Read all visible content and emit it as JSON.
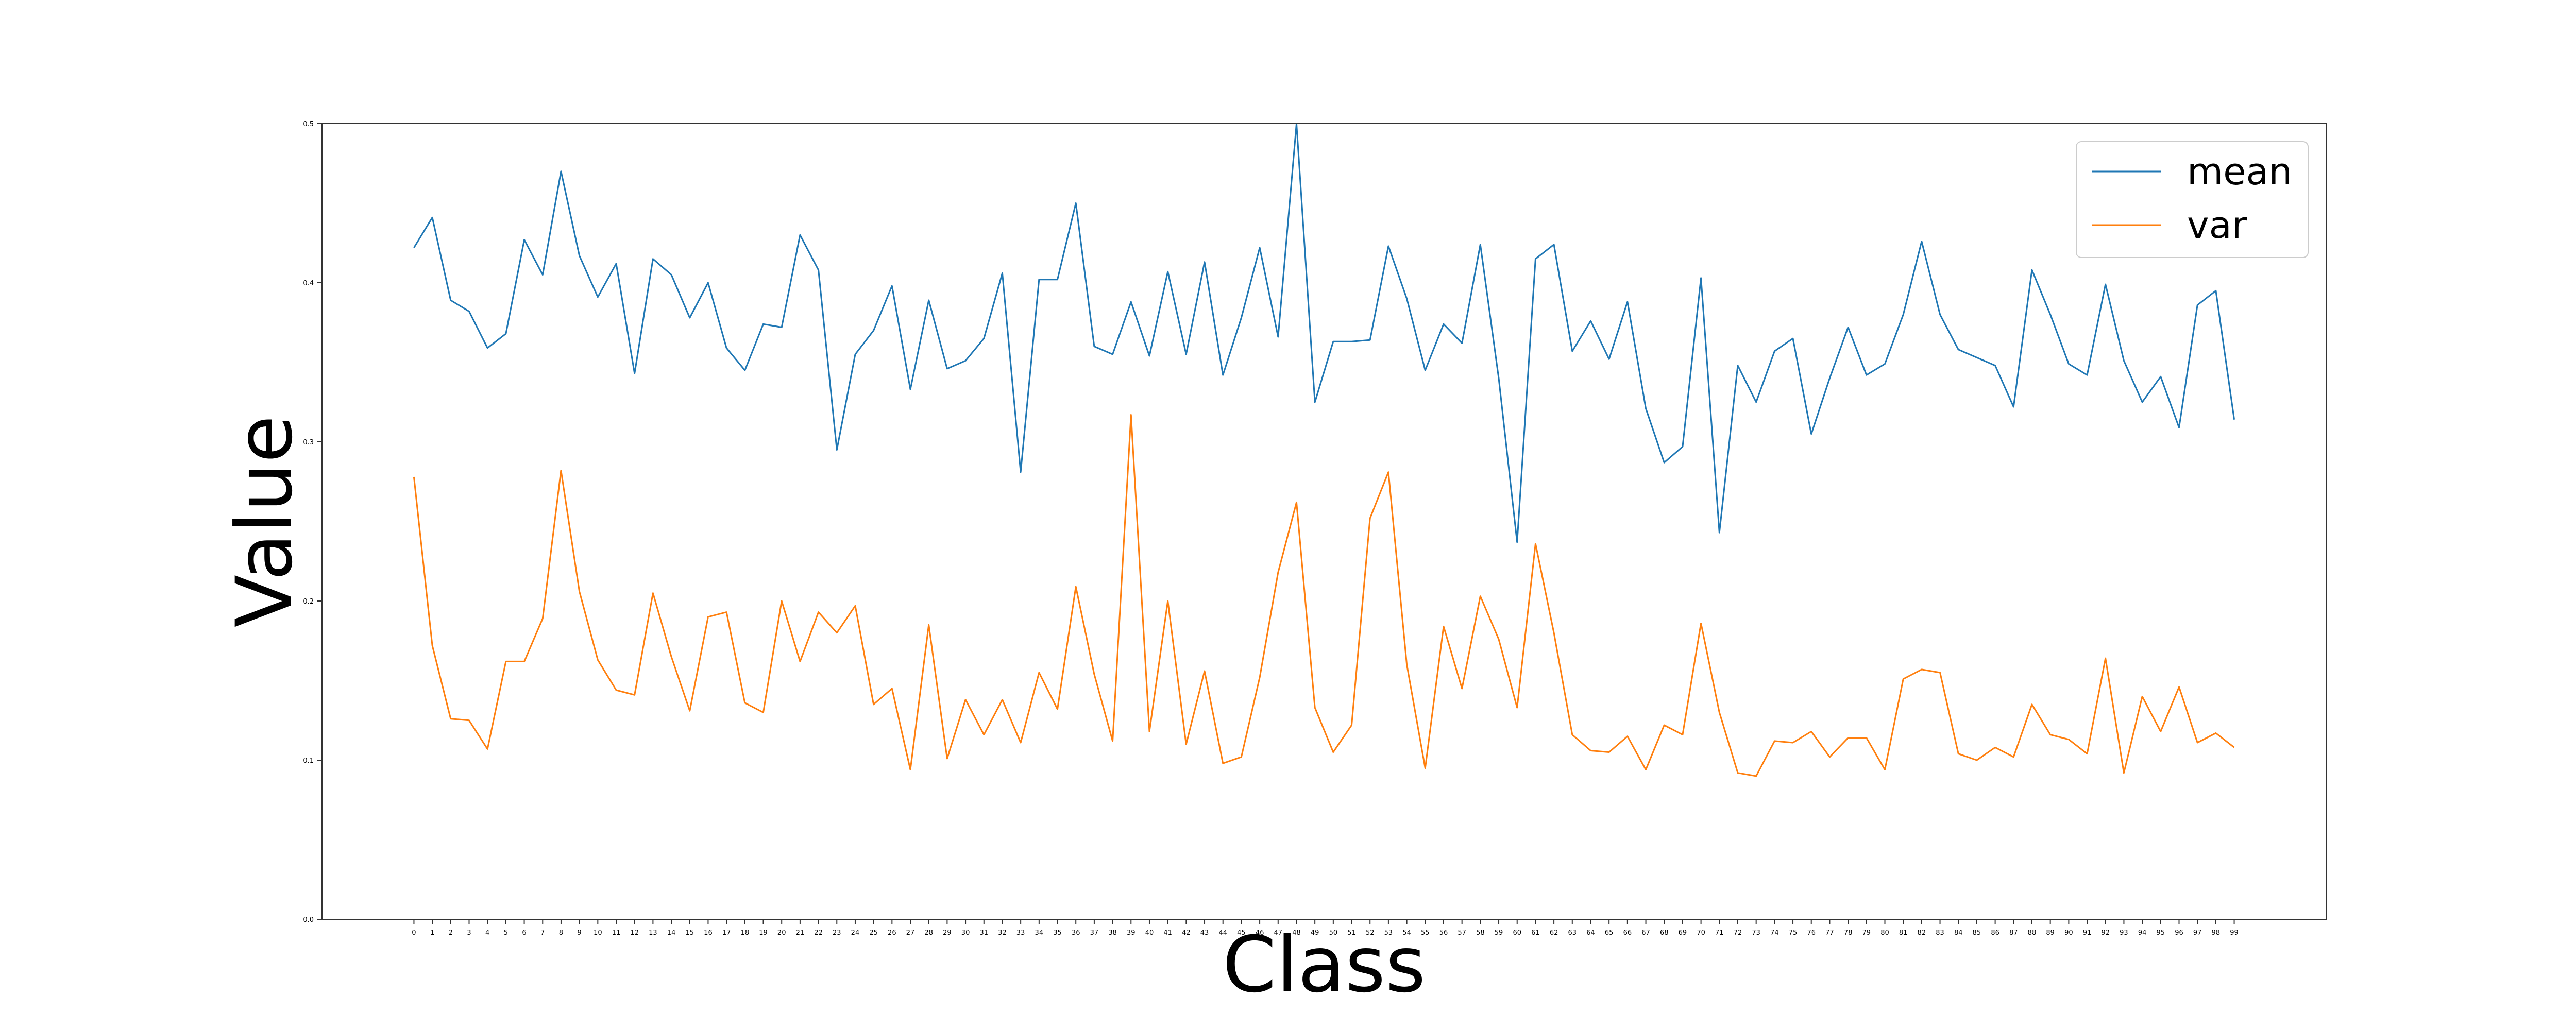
{
  "chart_data": {
    "type": "line",
    "title": "",
    "xlabel": "Class",
    "ylabel": "Value",
    "ylim": [
      0.0,
      0.5
    ],
    "yticks": [
      0.0,
      0.1,
      0.2,
      0.3,
      0.4,
      0.5
    ],
    "grid": false,
    "legend_position": "top-right",
    "x": [
      0,
      1,
      2,
      3,
      4,
      5,
      6,
      7,
      8,
      9,
      10,
      11,
      12,
      13,
      14,
      15,
      16,
      17,
      18,
      19,
      20,
      21,
      22,
      23,
      24,
      25,
      26,
      27,
      28,
      29,
      30,
      31,
      32,
      33,
      34,
      35,
      36,
      37,
      38,
      39,
      40,
      41,
      42,
      43,
      44,
      45,
      46,
      47,
      48,
      49,
      50,
      51,
      52,
      53,
      54,
      55,
      56,
      57,
      58,
      59,
      60,
      61,
      62,
      63,
      64,
      65,
      66,
      67,
      68,
      69,
      70,
      71,
      72,
      73,
      74,
      75,
      76,
      77,
      78,
      79,
      80,
      81,
      82,
      83,
      84,
      85,
      86,
      87,
      88,
      89,
      90,
      91,
      92,
      93,
      94,
      95,
      96,
      97,
      98,
      99
    ],
    "series": [
      {
        "name": "mean",
        "color": "#1f77b4",
        "values": [
          0.422,
          0.441,
          0.389,
          0.382,
          0.359,
          0.368,
          0.427,
          0.405,
          0.47,
          0.417,
          0.391,
          0.412,
          0.343,
          0.415,
          0.405,
          0.378,
          0.4,
          0.359,
          0.345,
          0.374,
          0.372,
          0.43,
          0.408,
          0.295,
          0.355,
          0.37,
          0.398,
          0.333,
          0.389,
          0.346,
          0.351,
          0.365,
          0.406,
          0.281,
          0.402,
          0.402,
          0.45,
          0.36,
          0.355,
          0.388,
          0.354,
          0.407,
          0.355,
          0.413,
          0.342,
          0.378,
          0.422,
          0.366,
          0.5,
          0.325,
          0.363,
          0.363,
          0.364,
          0.423,
          0.39,
          0.345,
          0.374,
          0.362,
          0.424,
          0.34,
          0.237,
          0.415,
          0.424,
          0.357,
          0.376,
          0.352,
          0.388,
          0.321,
          0.287,
          0.297,
          0.403,
          0.243,
          0.348,
          0.325,
          0.357,
          0.365,
          0.305,
          0.34,
          0.372,
          0.342,
          0.349,
          0.38,
          0.426,
          0.38,
          0.358,
          0.353,
          0.348,
          0.322,
          0.408,
          0.38,
          0.349,
          0.342,
          0.399,
          0.351,
          0.325,
          0.341,
          0.309,
          0.386,
          0.395,
          0.314
        ]
      },
      {
        "name": "var",
        "color": "#ff7f0e",
        "values": [
          0.278,
          0.172,
          0.126,
          0.125,
          0.107,
          0.162,
          0.162,
          0.189,
          0.282,
          0.206,
          0.163,
          0.144,
          0.141,
          0.205,
          0.165,
          0.131,
          0.19,
          0.193,
          0.136,
          0.13,
          0.2,
          0.162,
          0.193,
          0.18,
          0.197,
          0.135,
          0.145,
          0.094,
          0.185,
          0.101,
          0.138,
          0.116,
          0.138,
          0.111,
          0.155,
          0.132,
          0.209,
          0.154,
          0.112,
          0.317,
          0.118,
          0.2,
          0.11,
          0.156,
          0.098,
          0.102,
          0.152,
          0.218,
          0.262,
          0.133,
          0.105,
          0.122,
          0.252,
          0.281,
          0.16,
          0.095,
          0.184,
          0.145,
          0.203,
          0.176,
          0.133,
          0.236,
          0.18,
          0.116,
          0.106,
          0.105,
          0.115,
          0.094,
          0.122,
          0.116,
          0.186,
          0.13,
          0.092,
          0.09,
          0.112,
          0.111,
          0.118,
          0.102,
          0.114,
          0.114,
          0.094,
          0.151,
          0.157,
          0.155,
          0.104,
          0.1,
          0.108,
          0.102,
          0.135,
          0.116,
          0.113,
          0.104,
          0.164,
          0.092,
          0.14,
          0.118,
          0.146,
          0.111,
          0.117,
          0.108
        ]
      }
    ]
  }
}
